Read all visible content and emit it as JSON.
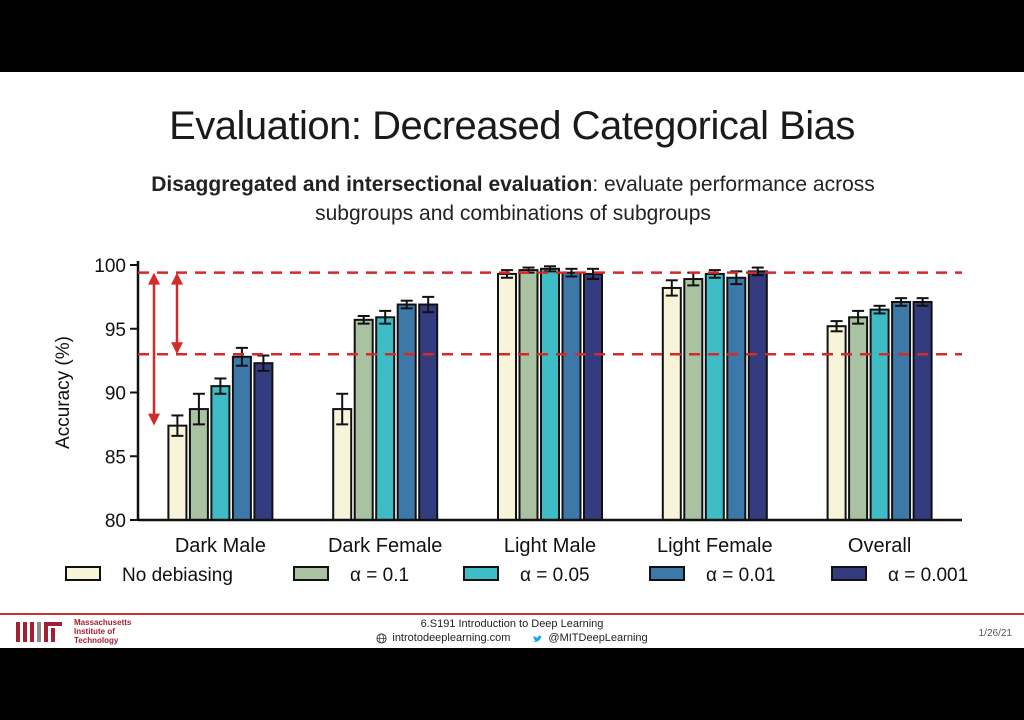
{
  "slide": {
    "title": "Evaluation: Decreased Categorical Bias",
    "subtitle_bold": "Disaggregated and intersectional evaluation",
    "subtitle_rest": ": evaluate performance across subgroups and combinations of subgroups"
  },
  "footer": {
    "institution": "Massachusetts\nInstitute of\nTechnology",
    "course": "6.S191 Introduction to Deep Learning",
    "website": "introtodeeplearning.com",
    "twitter": "@MITDeepLearning",
    "date": "1/26/21",
    "colors": {
      "accent": "#c8342f",
      "mit_red": "#a31f34"
    }
  },
  "chart_data": {
    "type": "bar",
    "categories": [
      "Dark Male",
      "Dark Female",
      "Light Male",
      "Light Female",
      "Overall"
    ],
    "ylabel": "Accuracy (%)",
    "xlabel": "",
    "ylim": [
      80,
      100
    ],
    "yticks": [
      80,
      85,
      90,
      95,
      100
    ],
    "series": [
      {
        "name": "No debiasing",
        "color": "#f7f4d9",
        "values": [
          87.4,
          88.7,
          99.3,
          98.2,
          95.2
        ],
        "errors": [
          0.8,
          1.2,
          0.3,
          0.6,
          0.4
        ]
      },
      {
        "name": "α = 0.1",
        "color": "#a9c3a2",
        "values": [
          88.7,
          95.7,
          99.6,
          98.9,
          95.9
        ],
        "errors": [
          1.2,
          0.3,
          0.2,
          0.5,
          0.5
        ]
      },
      {
        "name": "α = 0.05",
        "color": "#3ebdc6",
        "values": [
          90.5,
          95.9,
          99.7,
          99.3,
          96.5
        ],
        "errors": [
          0.6,
          0.5,
          0.2,
          0.3,
          0.3
        ]
      },
      {
        "name": "α = 0.01",
        "color": "#3d79a8",
        "values": [
          92.8,
          96.9,
          99.4,
          99.0,
          97.1
        ],
        "errors": [
          0.7,
          0.3,
          0.3,
          0.5,
          0.3
        ]
      },
      {
        "name": "α = 0.001",
        "color": "#333c7f",
        "values": [
          92.3,
          96.9,
          99.3,
          99.5,
          97.1
        ],
        "errors": [
          0.6,
          0.6,
          0.4,
          0.3,
          0.3
        ]
      }
    ],
    "reference_lines": [
      99.4,
      93.0
    ],
    "reference_line_color": "#d42a2a",
    "legend_position": "bottom",
    "grid": false
  }
}
